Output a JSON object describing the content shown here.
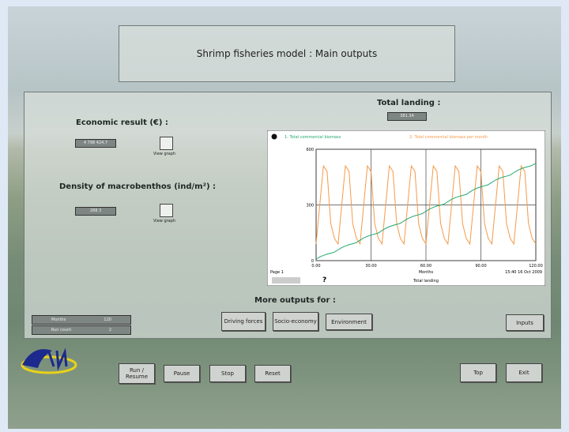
{
  "header": {
    "title": "Shrimp fisheries model : Main outputs"
  },
  "indicators": {
    "total_landing": {
      "label": "Total landing :",
      "value": "381.34"
    },
    "economic_result": {
      "label": "Economic result (€) :",
      "value": "4 798 424.7",
      "button": "View graph"
    },
    "density": {
      "label": "Density of macrobenthos (ind/m²) :",
      "value": "288.3",
      "button": "View graph"
    }
  },
  "status": {
    "rows": [
      [
        "Months",
        "120"
      ],
      [
        "Run count",
        "2"
      ]
    ]
  },
  "more_outputs": {
    "label": "More outputs for :",
    "buttons": [
      "Driving forces",
      "Socio-economy",
      "Environment"
    ]
  },
  "inputs_button": "Inputs",
  "controls": [
    "Run / Resume",
    "Pause",
    "Stop",
    "Reset"
  ],
  "nav": [
    "Top",
    "Exit"
  ],
  "chart_toolbar": {
    "help": "?"
  },
  "chart_data": {
    "type": "line",
    "x_label": "Months",
    "page_label": "Page 1",
    "subtitle": "Total landing",
    "timestamp": "15:40  16 Oct 2009",
    "x": [
      0,
      2,
      4,
      6,
      8,
      10,
      12,
      14,
      16,
      18,
      20,
      22,
      24,
      26,
      28,
      30,
      32,
      34,
      36,
      38,
      40,
      42,
      44,
      46,
      48,
      50,
      52,
      54,
      56,
      58,
      60,
      62,
      64,
      66,
      68,
      70,
      72,
      74,
      76,
      78,
      80,
      82,
      84,
      86,
      88,
      90,
      92,
      94,
      96,
      98,
      100,
      102,
      104,
      106,
      108,
      110,
      112,
      114,
      116,
      118,
      120
    ],
    "xlim": [
      0,
      120
    ],
    "xticks": [
      {
        "value": 0,
        "label": "0.00"
      },
      {
        "value": 30,
        "label": "30.00"
      },
      {
        "value": 60,
        "label": "60.00"
      },
      {
        "value": 90,
        "label": "90.00"
      },
      {
        "value": 120,
        "label": "120.00"
      }
    ],
    "ylim": [
      0,
      600
    ],
    "yticks": [
      0,
      300,
      600
    ],
    "grid": true,
    "series": [
      {
        "name": "1: Total commercial biomass",
        "color": "#22a86c",
        "values": [
          8,
          20,
          28,
          35,
          40,
          46,
          58,
          70,
          79,
          86,
          91,
          97,
          110,
          122,
          131,
          138,
          143,
          149,
          162,
          174,
          183,
          190,
          195,
          201,
          214,
          226,
          235,
          242,
          247,
          253,
          266,
          278,
          287,
          294,
          299,
          305,
          318,
          330,
          339,
          346,
          351,
          357,
          370,
          382,
          391,
          398,
          403,
          409,
          422,
          434,
          443,
          450,
          455,
          461,
          474,
          486,
          495,
          502,
          507,
          513,
          525
        ]
      },
      {
        "name": "2: Total commercial biomass per month",
        "color": "#f59a4a",
        "values": [
          90,
          300,
          510,
          480,
          200,
          120,
          90,
          300,
          510,
          480,
          200,
          120,
          90,
          300,
          510,
          480,
          200,
          120,
          90,
          300,
          510,
          480,
          200,
          120,
          90,
          300,
          510,
          480,
          200,
          120,
          90,
          300,
          510,
          480,
          200,
          120,
          90,
          300,
          510,
          480,
          200,
          120,
          90,
          300,
          510,
          480,
          200,
          120,
          90,
          300,
          510,
          480,
          200,
          120,
          90,
          300,
          510,
          480,
          200,
          120,
          90
        ]
      }
    ]
  }
}
